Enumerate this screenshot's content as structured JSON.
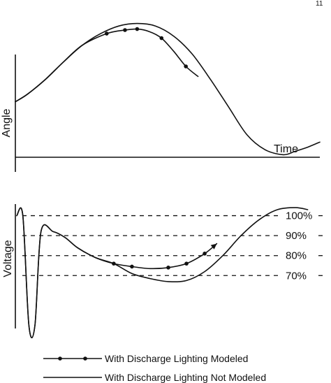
{
  "corner_mark": "11",
  "chart_data": [
    {
      "type": "line",
      "panel": "angle",
      "ylabel": "Angle",
      "xlabel": "Time",
      "x_units": "relative time (no numeric ticks shown)",
      "xlim": [
        0,
        1
      ],
      "ylim": [
        -0.5,
        2.2
      ],
      "series": [
        {
          "name": "With Discharge Lighting Modeled",
          "marker": "dot",
          "x": [
            0.0,
            0.04,
            0.1,
            0.16,
            0.22,
            0.3,
            0.36,
            0.4,
            0.44,
            0.48,
            0.52,
            0.56,
            0.6
          ],
          "y": [
            0.6,
            0.75,
            1.05,
            1.4,
            1.72,
            1.95,
            2.02,
            2.04,
            1.99,
            1.86,
            1.6,
            1.3,
            1.1
          ],
          "marker_indices": [
            5,
            6,
            7,
            9,
            11
          ]
        },
        {
          "name": "With Discharge Lighting Not Modeled",
          "marker": "none",
          "x": [
            0.0,
            0.04,
            0.1,
            0.16,
            0.22,
            0.28,
            0.34,
            0.4,
            0.46,
            0.52,
            0.58,
            0.64,
            0.7,
            0.76,
            0.82,
            0.88,
            0.92,
            0.96,
            1.0
          ],
          "y": [
            0.6,
            0.75,
            1.05,
            1.4,
            1.72,
            1.95,
            2.1,
            2.15,
            2.1,
            1.9,
            1.55,
            1.05,
            0.5,
            -0.05,
            -0.35,
            -0.45,
            -0.38,
            -0.3,
            -0.2
          ]
        }
      ]
    },
    {
      "type": "line",
      "panel": "voltage",
      "ylabel": "Voltage",
      "xlim": [
        0,
        1
      ],
      "ylim": [
        40,
        110
      ],
      "reference_lines": [
        {
          "value": 100,
          "label": "100%"
        },
        {
          "value": 90,
          "label": "90%"
        },
        {
          "value": 80,
          "label": "80%"
        },
        {
          "value": 70,
          "label": "70%"
        }
      ],
      "series": [
        {
          "name": "With Discharge Lighting Modeled",
          "marker": "dot",
          "x": [
            0.0,
            0.02,
            0.04,
            0.06,
            0.08,
            0.12,
            0.16,
            0.2,
            0.26,
            0.32,
            0.38,
            0.44,
            0.5,
            0.56,
            0.62,
            0.66
          ],
          "y": [
            100,
            100,
            45,
            45,
            92,
            92,
            89,
            84,
            79,
            76,
            74.5,
            73.5,
            74,
            76,
            81,
            86
          ],
          "marker_indices": [
            9,
            10,
            12,
            13,
            14
          ]
        },
        {
          "name": "With Discharge Lighting Not Modeled",
          "marker": "none",
          "x": [
            0.0,
            0.02,
            0.04,
            0.06,
            0.08,
            0.12,
            0.16,
            0.2,
            0.26,
            0.32,
            0.38,
            0.44,
            0.5,
            0.56,
            0.62,
            0.68,
            0.74,
            0.8,
            0.86,
            0.92,
            0.96
          ],
          "y": [
            100,
            100,
            45,
            45,
            92,
            92,
            89,
            84,
            79,
            76,
            71,
            68.5,
            67,
            67.5,
            72,
            80,
            90,
            98,
            103,
            104,
            103
          ]
        }
      ]
    }
  ],
  "legend": [
    {
      "label": "With Discharge Lighting Modeled",
      "style": "line-with-dots"
    },
    {
      "label": "With Discharge Lighting Not Modeled",
      "style": "line"
    }
  ]
}
